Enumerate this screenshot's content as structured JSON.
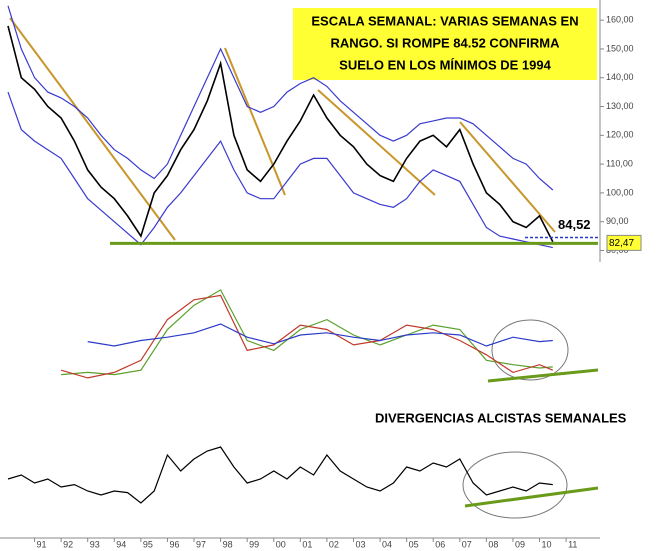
{
  "chart_data": [
    {
      "type": "line",
      "annotation_box": [
        "ESCALA SEMANAL: VARIAS SEMANAS EN",
        "RANGO. SI ROMPE 84.52 CONFIRMA",
        "SUELO EN LOS MÍNIMOS DE 1994"
      ],
      "x": [
        1990.0,
        1990.5,
        1991.0,
        1991.5,
        1992.0,
        1992.5,
        1993.0,
        1993.5,
        1994.0,
        1994.5,
        1995.0,
        1995.5,
        1996.0,
        1996.5,
        1997.0,
        1997.5,
        1998.0,
        1998.5,
        1999.0,
        1999.5,
        2000.0,
        2000.5,
        2001.0,
        2001.5,
        2002.0,
        2002.5,
        2003.0,
        2003.5,
        2004.0,
        2004.5,
        2005.0,
        2005.5,
        2006.0,
        2006.5,
        2007.0,
        2007.5,
        2008.0,
        2008.5,
        2009.0,
        2009.5,
        2010.0,
        2010.5
      ],
      "series": [
        {
          "color": "#000000",
          "values": [
            158,
            140,
            136,
            130,
            126,
            118,
            108,
            102,
            98,
            92,
            85,
            100,
            106,
            115,
            122,
            132,
            145,
            120,
            108,
            104,
            110,
            118,
            125,
            134,
            126,
            120,
            116,
            110,
            106,
            104,
            112,
            118,
            120,
            116,
            122,
            110,
            100,
            96,
            90,
            88,
            92,
            83
          ]
        },
        {
          "color": "#3a3ad0",
          "values": [
            165,
            150,
            140,
            135,
            133,
            130,
            126,
            120,
            115,
            112,
            108,
            105,
            110,
            120,
            130,
            140,
            150,
            140,
            130,
            128,
            130,
            135,
            138,
            140,
            137,
            132,
            128,
            124,
            120,
            118,
            120,
            124,
            125,
            126,
            126,
            124,
            120,
            116,
            112,
            110,
            105,
            101
          ]
        },
        {
          "color": "#3a3ad0",
          "values": [
            135,
            122,
            118,
            115,
            112,
            105,
            98,
            94,
            90,
            86,
            82,
            88,
            95,
            100,
            106,
            112,
            118,
            108,
            100,
            98,
            98,
            104,
            110,
            112,
            112,
            106,
            100,
            98,
            96,
            95,
            98,
            104,
            108,
            106,
            104,
            96,
            88,
            85,
            84,
            83,
            82,
            81
          ]
        }
      ],
      "levels": [
        {
          "value": 84.52,
          "label": "84,52"
        },
        {
          "value": 82.47,
          "label": "82,47"
        }
      ],
      "ylim": [
        76,
        167
      ],
      "yticks": [
        {
          "value": 80,
          "label": "80,00"
        },
        {
          "value": 90,
          "label": "90,00"
        },
        {
          "value": 100,
          "label": "100,00"
        },
        {
          "value": 110,
          "label": "110,00"
        },
        {
          "value": 120,
          "label": "120,00"
        },
        {
          "value": 130,
          "label": "130,00"
        },
        {
          "value": 140,
          "label": "140,00"
        },
        {
          "value": 150,
          "label": "150,00"
        },
        {
          "value": 160,
          "label": "160,00"
        }
      ]
    },
    {
      "type": "line",
      "x": [
        1992,
        1993,
        1994,
        1995,
        1996,
        1997,
        1998,
        1999,
        2000,
        2001,
        2002,
        2003,
        2004,
        2005,
        2006,
        2007,
        2008,
        2009,
        2010,
        2010.5
      ],
      "series": [
        {
          "color": "#5aa02c",
          "values": [
            14,
            16,
            14,
            18,
            55,
            77,
            91,
            45,
            36,
            55,
            64,
            50,
            41,
            50,
            59,
            55,
            27,
            23,
            20,
            21
          ]
        },
        {
          "color": "#c0392b",
          "values": [
            18,
            11,
            16,
            27,
            64,
            82,
            86,
            36,
            41,
            59,
            55,
            41,
            45,
            59,
            55,
            45,
            32,
            16,
            23,
            18
          ]
        },
        {
          "color": "#2b3bc8",
          "values": [
            null,
            44,
            40,
            45,
            48,
            52,
            60,
            48,
            42,
            50,
            52,
            48,
            45,
            50,
            52,
            50,
            40,
            48,
            44,
            45
          ]
        }
      ],
      "ylim": [
        0,
        100
      ]
    },
    {
      "type": "line",
      "annotation": "DIVERGENCIAS ALCISTAS SEMANALES",
      "x": [
        1990.0,
        1990.5,
        1991.0,
        1991.5,
        1992.0,
        1992.5,
        1993.0,
        1993.5,
        1994.0,
        1994.5,
        1995.0,
        1995.5,
        1996.0,
        1996.5,
        1997.0,
        1997.5,
        1998.0,
        1998.5,
        1999.0,
        1999.5,
        2000.0,
        2000.5,
        2001.0,
        2001.5,
        2002.0,
        2002.5,
        2003.0,
        2003.5,
        2004.0,
        2004.5,
        2005.0,
        2005.5,
        2006.0,
        2006.5,
        2007.0,
        2007.5,
        2008.0,
        2008.5,
        2009.0,
        2009.5,
        2010.0,
        2010.5
      ],
      "series": [
        {
          "color": "#000000",
          "values": [
            45,
            50,
            40,
            45,
            35,
            38,
            30,
            25,
            30,
            28,
            15,
            30,
            75,
            55,
            70,
            80,
            85,
            60,
            40,
            45,
            55,
            45,
            60,
            50,
            75,
            55,
            45,
            35,
            30,
            40,
            60,
            55,
            65,
            60,
            70,
            40,
            25,
            30,
            35,
            30,
            40,
            38
          ]
        }
      ],
      "ylim": [
        0,
        100
      ],
      "xlim": [
        1989.7,
        2012.2
      ],
      "xticks": [
        {
          "value": 1991,
          "label": "91"
        },
        {
          "value": 1992,
          "label": "92"
        },
        {
          "value": 1993,
          "label": "93"
        },
        {
          "value": 1994,
          "label": "94"
        },
        {
          "value": 1995,
          "label": "95"
        },
        {
          "value": 1996,
          "label": "96"
        },
        {
          "value": 1997,
          "label": "97"
        },
        {
          "value": 1998,
          "label": "98"
        },
        {
          "value": 1999,
          "label": "99"
        },
        {
          "value": 2000,
          "label": "00"
        },
        {
          "value": 2001,
          "label": "01"
        },
        {
          "value": 2002,
          "label": "02"
        },
        {
          "value": 2003,
          "label": "03"
        },
        {
          "value": 2004,
          "label": "04"
        },
        {
          "value": 2005,
          "label": "05"
        },
        {
          "value": 2006,
          "label": "06"
        },
        {
          "value": 2007,
          "label": "07"
        },
        {
          "value": 2008,
          "label": "08"
        },
        {
          "value": 2009,
          "label": "09"
        },
        {
          "value": 2010,
          "label": "10"
        },
        {
          "value": 2011,
          "label": "11"
        }
      ]
    }
  ]
}
